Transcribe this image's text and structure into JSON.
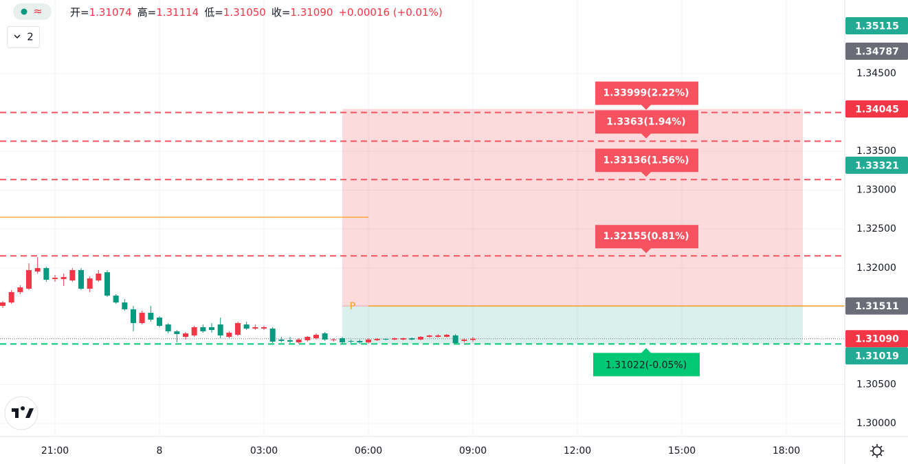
{
  "header": {
    "items": [
      {
        "label": "开=",
        "value": "1.31074"
      },
      {
        "label": "高=",
        "value": "1.31114"
      },
      {
        "label": "低=",
        "value": "1.31050"
      },
      {
        "label": "收=",
        "value": "1.31090"
      }
    ],
    "change": "+0.00016 (+0.01%)",
    "pane_count": "2",
    "entry_marker": "P"
  },
  "chart_data": {
    "type": "candlestick",
    "up_color": "#f23645",
    "down_color": "#089981",
    "open": [
      1.31512,
      1.31556,
      1.31689,
      1.31733,
      1.31954,
      1.31998,
      1.31857,
      1.31857,
      1.31839,
      1.31972,
      1.31733,
      1.31839,
      1.31945,
      1.31644,
      1.31556,
      1.31468,
      1.31291,
      1.31423,
      1.31361,
      1.31273,
      1.31185,
      1.31114,
      1.31132,
      1.31238,
      1.31238,
      1.31273,
      1.31114,
      1.3114,
      1.31273,
      1.3122,
      1.3122,
      1.3122,
      1.31079,
      1.3107,
      1.31043,
      1.3107,
      1.31096,
      1.31158,
      1.3107,
      1.31096,
      1.31061,
      1.31061,
      1.31043,
      1.3107,
      1.31087,
      1.31079,
      1.31079,
      1.31096,
      1.31079,
      1.31114,
      1.31114,
      1.31114,
      1.31132,
      1.31061,
      1.31074
    ],
    "high": [
      1.31574,
      1.31715,
      1.31777,
      1.3206,
      1.32139,
      1.32016,
      1.3191,
      1.31927,
      1.31998,
      1.31998,
      1.31892,
      1.31972,
      1.31972,
      1.31662,
      1.316,
      1.31512,
      1.3145,
      1.31512,
      1.31379,
      1.31291,
      1.31202,
      1.31176,
      1.31255,
      1.31273,
      1.31291,
      1.31361,
      1.31185,
      1.31308,
      1.31308,
      1.31273,
      1.31255,
      1.31238,
      1.31114,
      1.31114,
      1.31096,
      1.31123,
      1.31158,
      1.31176,
      1.31096,
      1.31114,
      1.31079,
      1.31079,
      1.31096,
      1.31096,
      1.31096,
      1.31105,
      1.31105,
      1.31105,
      1.31123,
      1.3114,
      1.31149,
      1.31149,
      1.31149,
      1.31096,
      1.31114
    ],
    "low": [
      1.31485,
      1.31538,
      1.31662,
      1.31715,
      1.31927,
      1.31821,
      1.31821,
      1.31768,
      1.31821,
      1.31715,
      1.31689,
      1.31821,
      1.31627,
      1.31538,
      1.3145,
      1.31185,
      1.31273,
      1.31308,
      1.31238,
      1.31158,
      1.31043,
      1.31079,
      1.31114,
      1.31167,
      1.31167,
      1.31096,
      1.31096,
      1.31123,
      1.31202,
      1.31202,
      1.31202,
      1.31034,
      1.31043,
      1.31034,
      1.31025,
      1.31052,
      1.31079,
      1.31061,
      1.31052,
      1.31025,
      1.31034,
      1.31025,
      1.31025,
      1.31061,
      1.3107,
      1.3107,
      1.3107,
      1.3107,
      1.3107,
      1.31105,
      1.31105,
      1.31105,
      1.31025,
      1.31043,
      1.3105
    ],
    "close": [
      1.31556,
      1.31689,
      1.3175,
      1.31972,
      1.31998,
      1.31848,
      1.31874,
      1.31883,
      1.31972,
      1.31733,
      1.31865,
      1.31927,
      1.31644,
      1.31556,
      1.31468,
      1.31291,
      1.31423,
      1.31335,
      1.31255,
      1.31185,
      1.31149,
      1.31158,
      1.31238,
      1.31185,
      1.31202,
      1.31132,
      1.31167,
      1.31291,
      1.3122,
      1.31238,
      1.31238,
      1.31052,
      1.31061,
      1.31052,
      1.31079,
      1.31114,
      1.3114,
      1.31079,
      1.31079,
      1.31043,
      1.31052,
      1.31043,
      1.31079,
      1.31087,
      1.31079,
      1.31096,
      1.31096,
      1.31079,
      1.31114,
      1.31132,
      1.31132,
      1.3114,
      1.31034,
      1.31079,
      1.3109
    ],
    "x_labels": [
      "21:00",
      "8",
      "03:00",
      "06:00",
      "09:00",
      "12:00",
      "15:00",
      "18:00"
    ],
    "ylim": [
      1.29832,
      1.35446
    ],
    "yticks": [
      {
        "value": 1.345,
        "label": "1.34500"
      },
      {
        "value": 1.335,
        "label": "1.33500"
      },
      {
        "value": 1.33,
        "label": "1.33000"
      },
      {
        "value": 1.325,
        "label": "1.32500"
      },
      {
        "value": 1.32,
        "label": "1.32000"
      },
      {
        "value": 1.305,
        "label": "1.30500"
      },
      {
        "value": 1.3,
        "label": "1.30000"
      }
    ],
    "grid": true,
    "target_lines": [
      {
        "value": 1.33999,
        "label": "1.33999(2.22%)"
      },
      {
        "value": 1.3363,
        "label": "1.3363(1.94%)"
      },
      {
        "value": 1.33136,
        "label": "1.33136(1.56%)"
      },
      {
        "value": 1.32155,
        "label": "1.32155(0.81%)"
      }
    ],
    "target_color": "#f7525f",
    "stop_line": {
      "value": 1.31022,
      "label": "1.31022(-0.05%)"
    },
    "stop_color": "#00c875",
    "orange_line": 1.32652,
    "position": {
      "target": 1.34045,
      "entry": 1.31511,
      "stop": 1.31022
    },
    "price_labels": [
      {
        "value": 1.35115,
        "label": "1.35115",
        "color": "#22ab94"
      },
      {
        "value": 1.34787,
        "label": "1.34787",
        "color": "#6a6d78"
      },
      {
        "value": 1.34045,
        "label": "1.34045",
        "color": "#f23645"
      },
      {
        "value": 1.33321,
        "label": "1.33321",
        "color": "#22ab94"
      },
      {
        "value": 1.31511,
        "label": "1.31511",
        "color": "#6a6d78"
      },
      {
        "value": 1.3109,
        "label": "1.31090",
        "color": "#f23645"
      },
      {
        "value": 1.31019,
        "label": "1.31019",
        "color": "#22ab94"
      }
    ]
  }
}
